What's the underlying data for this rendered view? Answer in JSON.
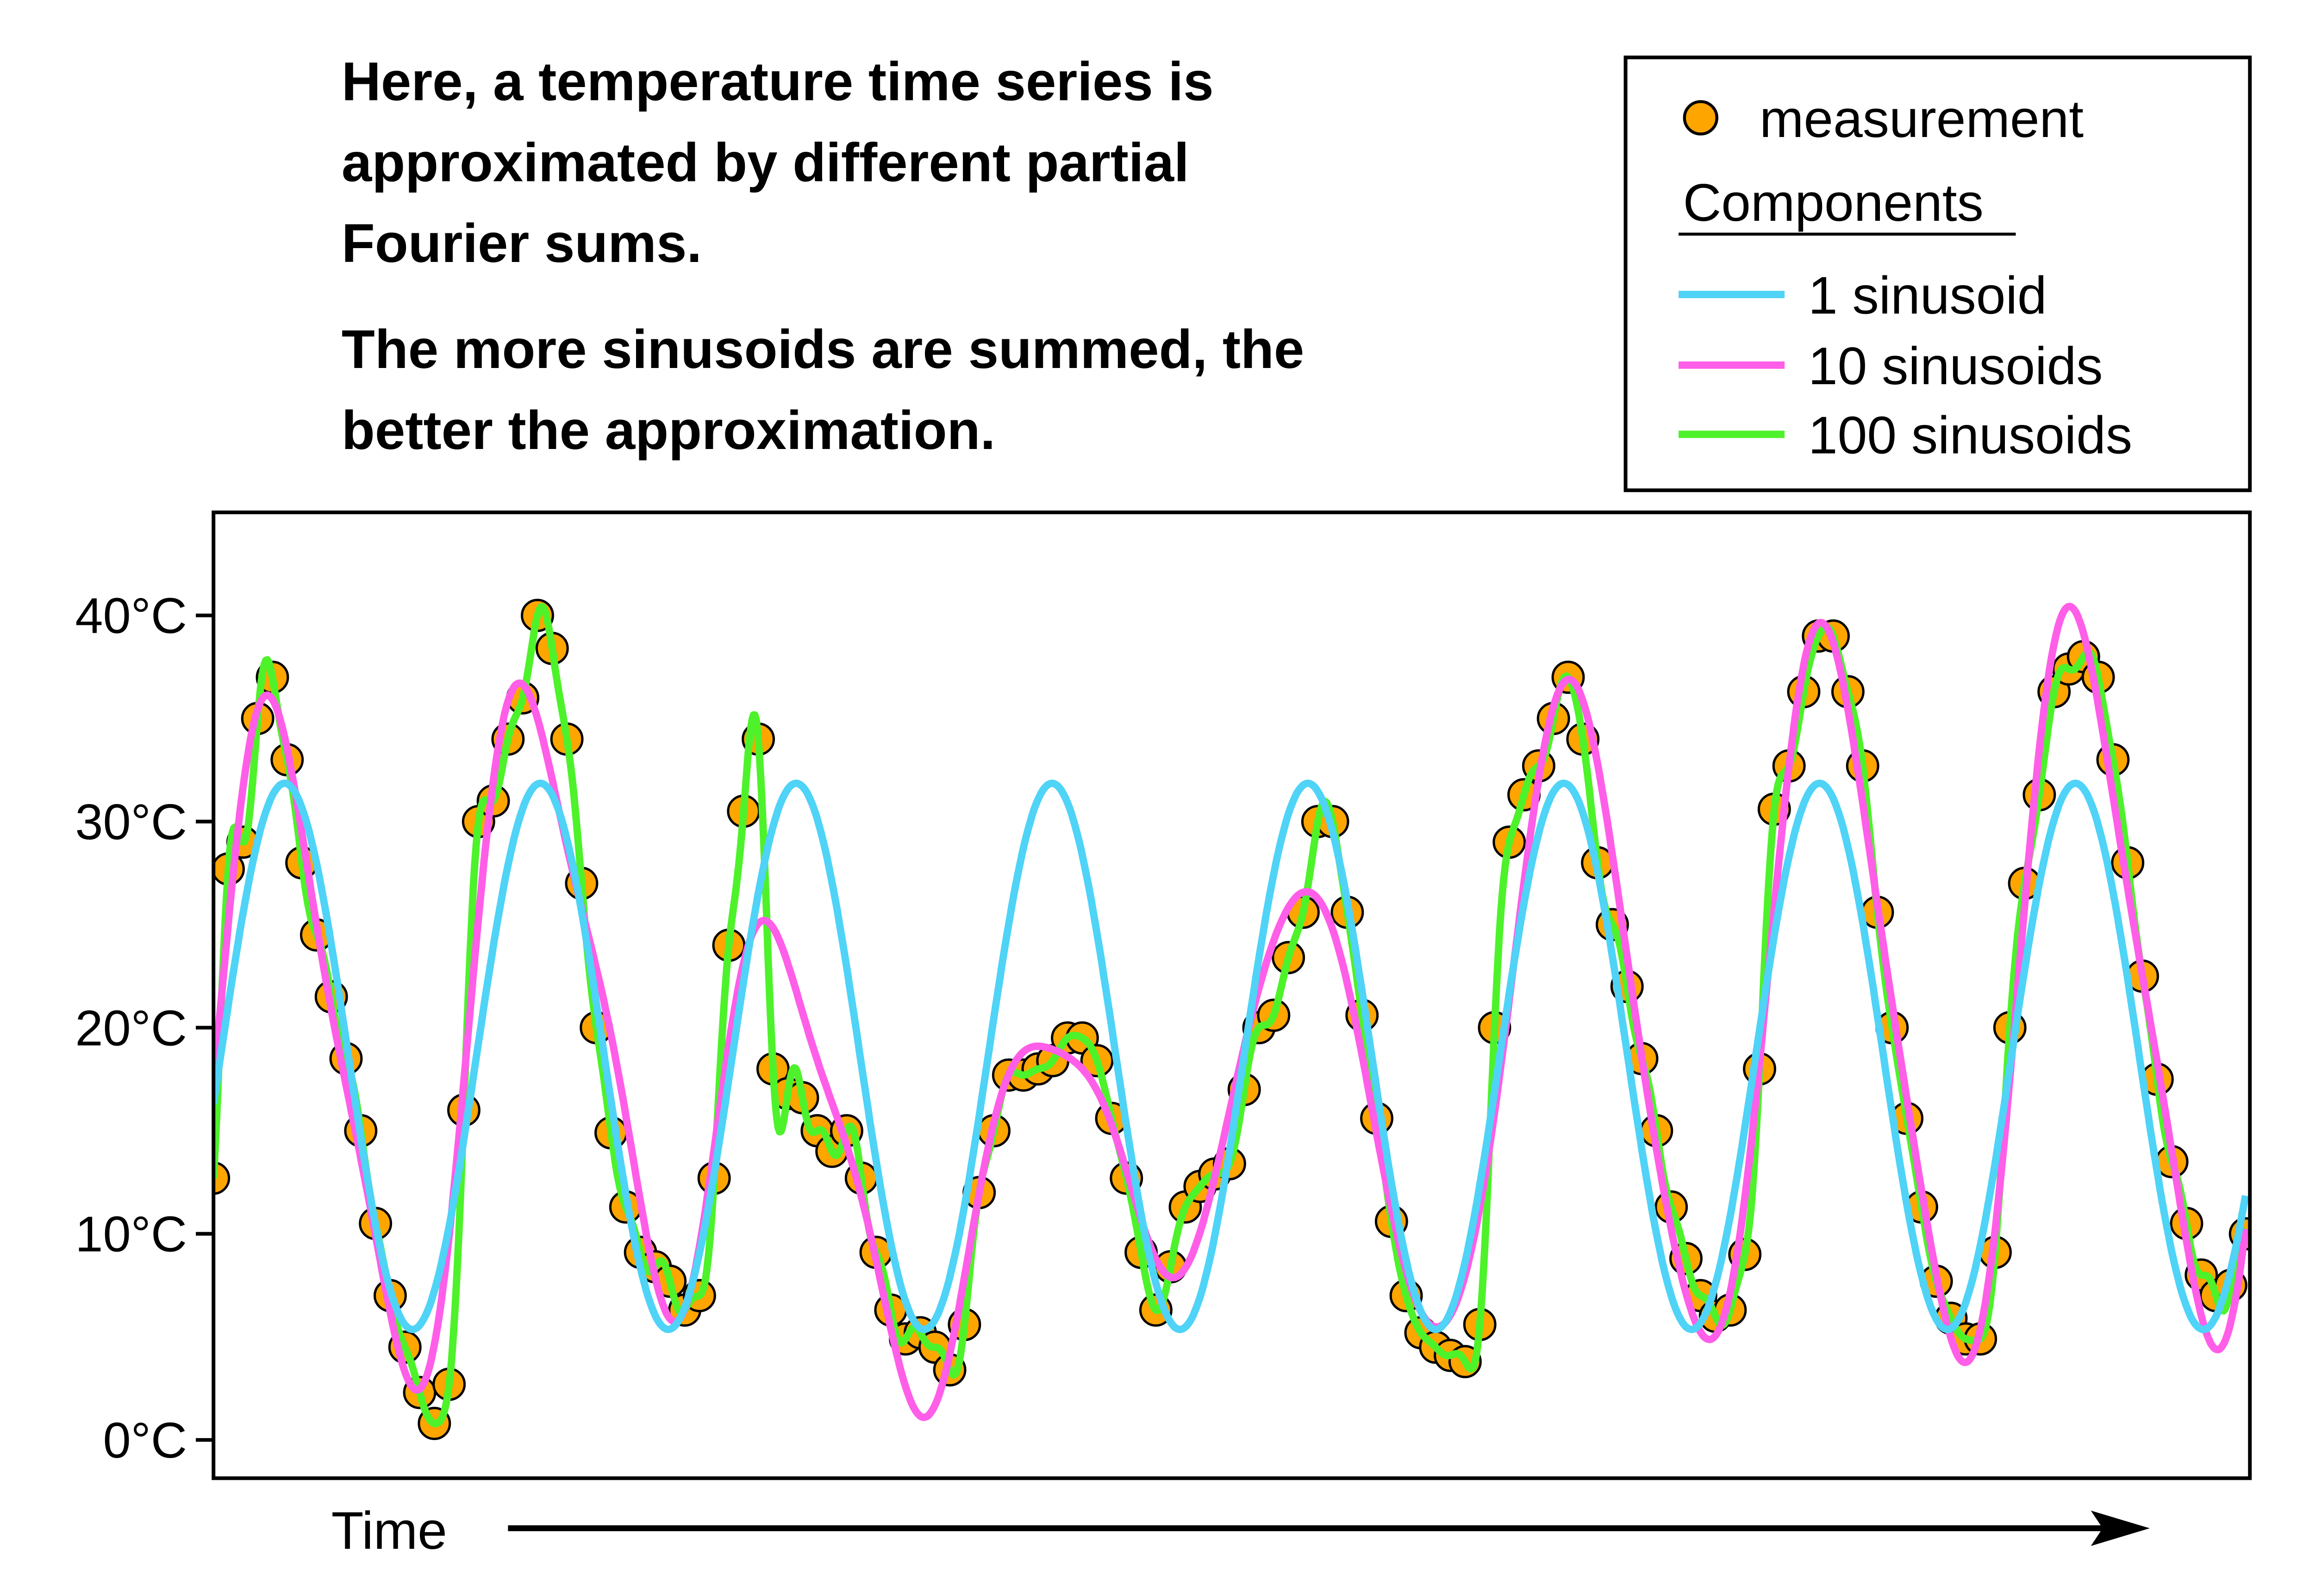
{
  "annotation": {
    "paragraph1": [
      "Here, a temperature time series is",
      "approximated by different partial",
      "Fourier sums."
    ],
    "paragraph2": [
      "The more sinusoids are summed, the",
      "better the approximation."
    ]
  },
  "legend": {
    "measurement": "measurement",
    "components_heading": "Components",
    "items": [
      {
        "label": "1 sinusoid",
        "color": "#4fd3f7"
      },
      {
        "label": "10 sinusoids",
        "color": "#ff5ee8"
      },
      {
        "label": "100 sinusoids",
        "color": "#4df22a"
      }
    ]
  },
  "chart_data": {
    "type": "scatter+line",
    "xlabel": "Time",
    "ylabel": "",
    "yticks": [
      0,
      10,
      20,
      30,
      40
    ],
    "ytick_labels": [
      "0°C",
      "10°C",
      "20°C",
      "30°C",
      "40°C"
    ],
    "ylim": [
      -1.8,
      45
    ],
    "grid": false,
    "legend_position": "top-right, outside above plot",
    "measurement_color": "#ffa500",
    "measurement": [
      12.7,
      27.7,
      29,
      35,
      37,
      33,
      28,
      24.5,
      21.5,
      18.5,
      15,
      10.5,
      7,
      4.5,
      2.3,
      0.8,
      2.7,
      16,
      30,
      31,
      34,
      36,
      40,
      38.4,
      34,
      27,
      20,
      14.9,
      11.3,
      9.1,
      8.4,
      7.7,
      6.3,
      7,
      12.7,
      24,
      30.5,
      34,
      18,
      16.8,
      16.6,
      15,
      14,
      15,
      12.7,
      9.1,
      6.3,
      4.9,
      5.2,
      4.5,
      3.4,
      5.6,
      12,
      15,
      17.7,
      17.7,
      18,
      18.4,
      19.5,
      19.5,
      18.4,
      15.6,
      12.7,
      9.1,
      6.3,
      8.4,
      11.3,
      12.3,
      12.9,
      13.4,
      17,
      20,
      20.6,
      23.4,
      25.6,
      30,
      30,
      25.6,
      20.6,
      15.6,
      10.6,
      7,
      5.2,
      4.5,
      4.1,
      3.8,
      5.6,
      20,
      29,
      31.3,
      32.7,
      35,
      37,
      34,
      28,
      25,
      22,
      18.5,
      15,
      11.3,
      8.8,
      7,
      6,
      6.3,
      9,
      18,
      30.6,
      32.7,
      36.3,
      39,
      39,
      36.3,
      32.7,
      25.6,
      20,
      15.6,
      11.3,
      7.7,
      5.9,
      4.9,
      4.9,
      9.1,
      20,
      27,
      31.3,
      36.3,
      37.4,
      38,
      37,
      33,
      28,
      22.5,
      17.5,
      13.5,
      10.5,
      8,
      7,
      7.5,
      10
    ],
    "series": [
      {
        "name": "1 sinusoid",
        "components": 1,
        "color": "#4fd3f7"
      },
      {
        "name": "10 sinusoids",
        "components": 10,
        "color": "#ff5ee8"
      },
      {
        "name": "100 sinusoids",
        "components": 100,
        "color": "#4df22a"
      }
    ]
  }
}
